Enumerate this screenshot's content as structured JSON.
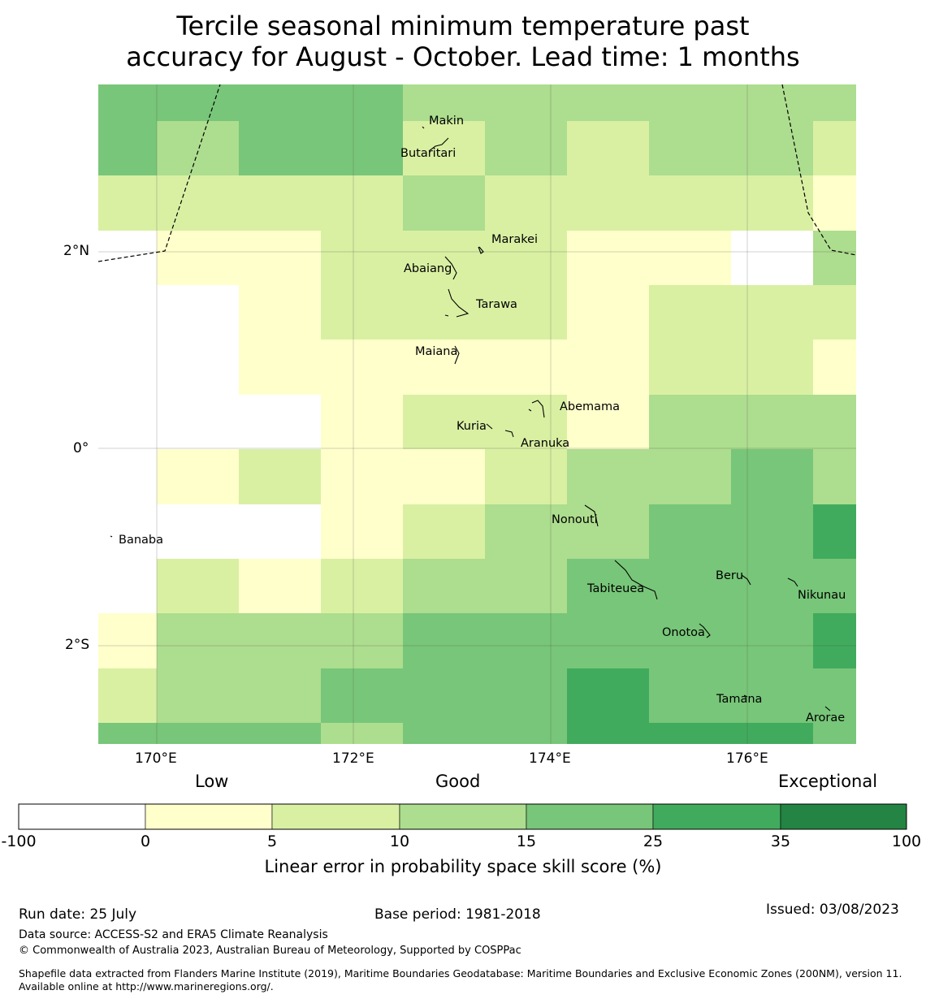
{
  "title": {
    "line1": "Tercile seasonal minimum temperature past",
    "line2": "accuracy for August - October. Lead time: 1 months"
  },
  "colors": {
    "bins": [
      "#ffffff",
      "#ffffcc",
      "#d9f0a3",
      "#addd8e",
      "#78c679",
      "#41ab5d",
      "#238443"
    ]
  },
  "map": {
    "x_ticks": [
      "170°E",
      "172°E",
      "174°E",
      "176°E"
    ],
    "y_ticks": [
      "2°N",
      "0°",
      "2°S"
    ],
    "places": [
      "Makin",
      "Butaritari",
      "Marakei",
      "Abaiang",
      "Tarawa",
      "Maiana",
      "Abemama",
      "Kuria",
      "Aranuka",
      "Nonouti",
      "Banaba",
      "Beru",
      "Tabiteuea",
      "Nikunau",
      "Onotoa",
      "Tamana",
      "Arorae"
    ],
    "grid": [
      [
        4,
        4,
        4,
        4,
        3,
        3,
        3,
        3,
        3,
        3
      ],
      [
        4,
        3,
        4,
        4,
        2,
        3,
        2,
        3,
        3,
        2
      ],
      [
        2,
        2,
        2,
        2,
        3,
        2,
        2,
        2,
        2,
        1
      ],
      [
        0,
        1,
        1,
        2,
        2,
        2,
        1,
        1,
        0,
        3
      ],
      [
        0,
        0,
        1,
        2,
        2,
        2,
        1,
        2,
        2,
        2
      ],
      [
        0,
        0,
        1,
        1,
        1,
        1,
        1,
        2,
        2,
        1
      ],
      [
        0,
        0,
        0,
        1,
        2,
        2,
        1,
        3,
        3,
        3
      ],
      [
        0,
        1,
        2,
        1,
        1,
        2,
        3,
        3,
        4,
        3
      ],
      [
        0,
        0,
        0,
        1,
        2,
        3,
        3,
        4,
        4,
        5
      ],
      [
        0,
        2,
        1,
        2,
        3,
        3,
        4,
        4,
        4,
        4
      ],
      [
        1,
        3,
        3,
        3,
        4,
        4,
        4,
        4,
        4,
        5
      ],
      [
        2,
        3,
        3,
        4,
        4,
        4,
        5,
        4,
        4,
        4
      ],
      [
        4,
        4,
        4,
        3,
        4,
        4,
        5,
        5,
        5,
        4
      ]
    ]
  },
  "colorbar": {
    "category_labels": [
      "Low",
      "Good",
      "Exceptional"
    ],
    "ticks": [
      "-100",
      "0",
      "5",
      "10",
      "15",
      "25",
      "35",
      "100"
    ],
    "label": "Linear error in probability space skill score (%)"
  },
  "footer": {
    "run_date": "Run date: 25 July",
    "base_period": "Base period: 1981-2018",
    "issued": "Issued: 03/08/2023",
    "data_source": "Data source: ACCESS-S2 and ERA5 Climate Reanalysis",
    "copyright": "© Commonwealth of Australia 2023, Australian Bureau of Meteorology, Supported by COSPPac",
    "shapefile": "Shapefile data extracted from Flanders Marine Institute (2019), Maritime Boundaries Geodatabase: Maritime Boundaries and Exclusive Economic Zones (200NM), version 11. Available online at http://www.marineregions.org/."
  }
}
